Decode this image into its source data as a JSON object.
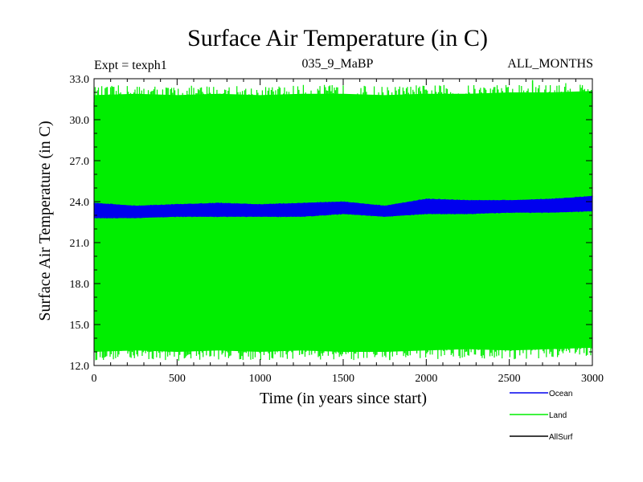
{
  "chart_data": {
    "type": "line",
    "title": "Surface Air Temperature (in C)",
    "subtitle_left": "Expt = texph1",
    "subtitle_center": "035_9_MaBP",
    "subtitle_right": "ALL_MONTHS",
    "xlabel": "Time (in years since start)",
    "ylabel": "Surface Air Temperature (in C)",
    "xlim": [
      0,
      3000
    ],
    "ylim": [
      12.0,
      33.0
    ],
    "x_ticks": [
      0,
      500,
      1000,
      1500,
      2000,
      2500,
      3000
    ],
    "y_ticks": [
      "12.0",
      "15.0",
      "18.0",
      "21.0",
      "24.0",
      "27.0",
      "30.0",
      "33.0"
    ],
    "grid": false,
    "legend_position": "bottom-right",
    "series": [
      {
        "name": "Land",
        "color": "#00ee00",
        "band": true,
        "x": [
          0,
          250,
          500,
          750,
          1000,
          1250,
          1500,
          1750,
          2000,
          2250,
          2500,
          2750,
          3000
        ],
        "upper": [
          31.8,
          31.9,
          31.8,
          31.9,
          31.8,
          31.9,
          31.9,
          31.8,
          31.9,
          31.9,
          32.0,
          32.0,
          32.1
        ],
        "lower": [
          13.0,
          13.1,
          13.0,
          13.1,
          13.0,
          13.1,
          13.0,
          13.0,
          13.1,
          13.2,
          13.1,
          13.2,
          13.3
        ],
        "peak_high": 32.9,
        "peak_low": 12.4
      },
      {
        "name": "Ocean",
        "color": "#0000ee",
        "band": true,
        "x": [
          0,
          250,
          500,
          750,
          1000,
          1250,
          1500,
          1750,
          2000,
          2250,
          2500,
          2750,
          3000
        ],
        "upper": [
          23.9,
          23.7,
          23.8,
          23.9,
          23.8,
          23.9,
          24.0,
          23.7,
          24.2,
          24.1,
          24.1,
          24.2,
          24.4
        ],
        "lower": [
          22.8,
          22.8,
          22.9,
          22.9,
          22.9,
          22.9,
          23.1,
          22.9,
          23.1,
          23.1,
          23.2,
          23.2,
          23.3
        ]
      },
      {
        "name": "AllSurf",
        "color": "#000000",
        "band": false,
        "x": [],
        "values": []
      }
    ]
  }
}
